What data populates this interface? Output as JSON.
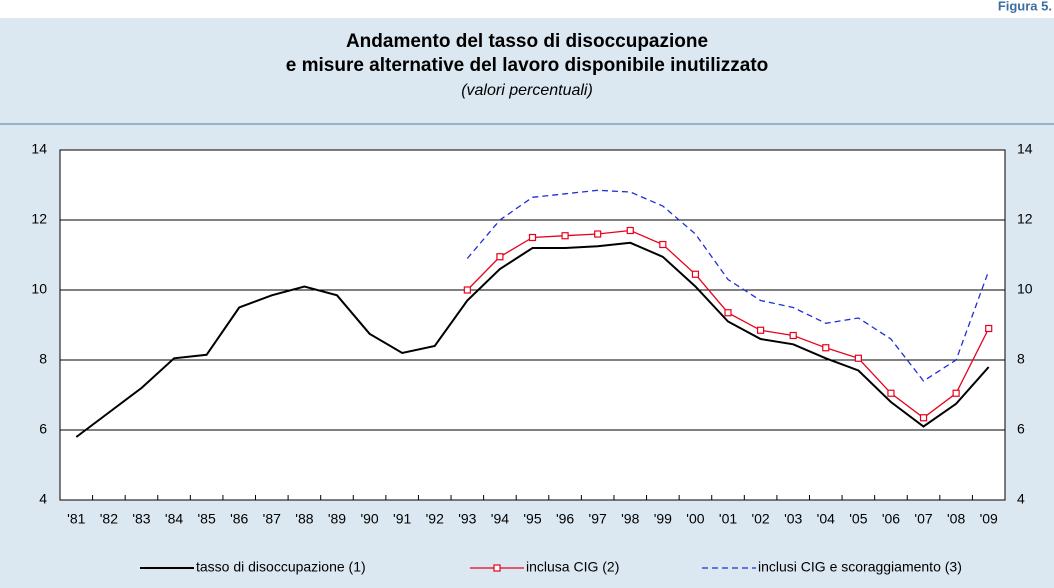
{
  "figure_label": "Figura 5.",
  "chart_data": {
    "type": "line",
    "title": [
      "Andamento del tasso di disoccupazione",
      "e misure alternative del lavoro disponibile inutilizzato"
    ],
    "subtitle": "(valori percentuali)",
    "categories": [
      "'81",
      "'82",
      "'83",
      "'84",
      "'85",
      "'86",
      "'87",
      "'88",
      "'89",
      "'90",
      "'91",
      "'92",
      "'93",
      "'94",
      "'95",
      "'96",
      "'97",
      "'98",
      "'99",
      "'00",
      "'01",
      "'02",
      "'03",
      "'04",
      "'05",
      "'06",
      "'07",
      "'08",
      "'09"
    ],
    "series": [
      {
        "name": "tasso di disoccupazione (1)",
        "color": "#000000",
        "dash": false,
        "marker": false,
        "values": [
          5.8,
          6.5,
          7.2,
          8.05,
          8.15,
          9.5,
          9.85,
          10.1,
          9.85,
          8.75,
          8.2,
          8.4,
          9.7,
          10.6,
          11.2,
          11.2,
          11.25,
          11.35,
          10.95,
          10.1,
          9.1,
          8.6,
          8.45,
          8.05,
          7.7,
          6.8,
          6.1,
          6.75,
          7.8
        ]
      },
      {
        "name": "inclusa CIG (2)",
        "color": "#e8001c",
        "dash": false,
        "marker": true,
        "values": [
          null,
          null,
          null,
          null,
          null,
          null,
          null,
          null,
          null,
          null,
          null,
          null,
          10.0,
          10.95,
          11.5,
          11.55,
          11.6,
          11.7,
          11.3,
          10.45,
          9.35,
          8.85,
          8.7,
          8.35,
          8.05,
          7.05,
          6.35,
          7.05,
          8.9
        ]
      },
      {
        "name": "inclusi CIG e scoraggiamento (3)",
        "color": "#1f2fd6",
        "dash": true,
        "marker": false,
        "values": [
          null,
          null,
          null,
          null,
          null,
          null,
          null,
          null,
          null,
          null,
          null,
          null,
          10.9,
          12.0,
          12.65,
          12.75,
          12.85,
          12.8,
          12.4,
          11.6,
          10.3,
          9.7,
          9.5,
          9.05,
          9.2,
          8.6,
          7.4,
          8.0,
          10.55
        ]
      }
    ],
    "ylim": [
      4,
      14
    ],
    "yticks": [
      4,
      6,
      8,
      10,
      12,
      14
    ],
    "y2lim": [
      4,
      14
    ],
    "y2ticks": [
      4,
      6,
      8,
      10,
      12,
      14
    ],
    "grid": true,
    "legend": "bottom"
  }
}
